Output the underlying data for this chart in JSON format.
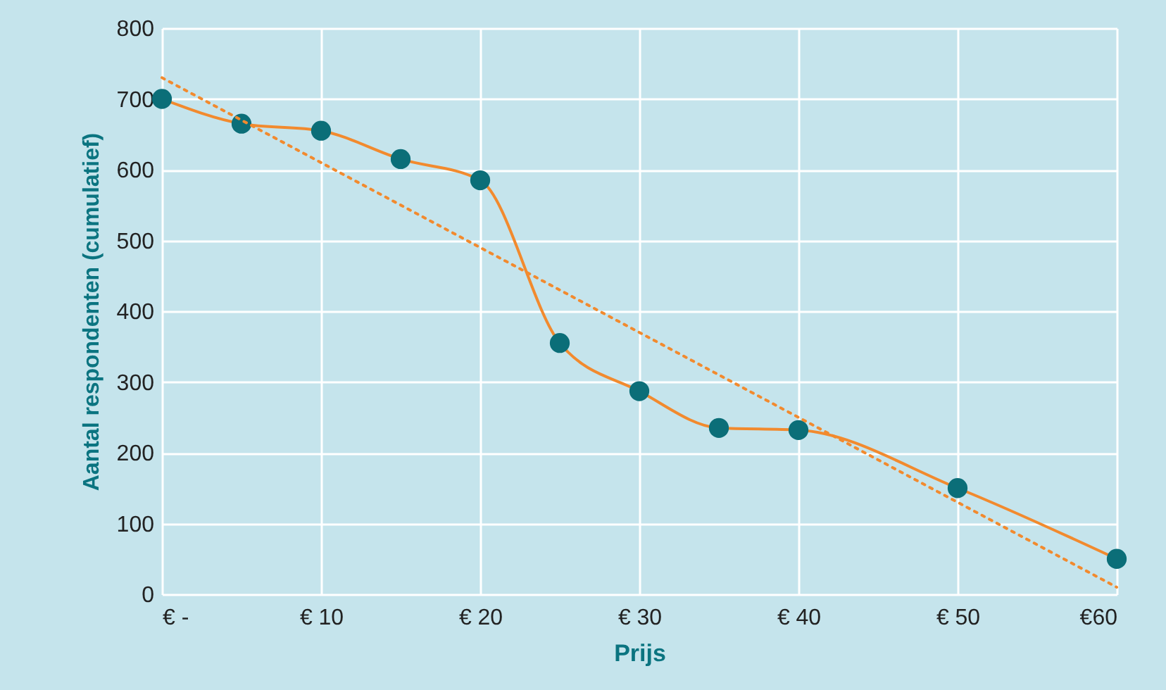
{
  "chart_data": {
    "type": "line",
    "xlabel": "Prijs",
    "ylabel": "Aantal respondenten (cumulatief)",
    "x": [
      0,
      5,
      10,
      15,
      20,
      25,
      30,
      35,
      40,
      50,
      60
    ],
    "series": [
      {
        "color": "#f28a2e",
        "marker": "circle",
        "line_style": "solid",
        "values": [
          700,
          665,
          655,
          615,
          585,
          355,
          287,
          235,
          232,
          150,
          50
        ]
      },
      {
        "type": "line",
        "color": "#f28a2e",
        "marker": "none",
        "line_style": "dotted",
        "x": [
          0,
          60
        ],
        "values": [
          730,
          10
        ]
      }
    ],
    "xlim": [
      0,
      60
    ],
    "ylim": [
      0,
      800
    ],
    "xticks": [
      {
        "value": 0,
        "label": "€ -"
      },
      {
        "value": 10,
        "label": "€ 10"
      },
      {
        "value": 20,
        "label": "€ 20"
      },
      {
        "value": 30,
        "label": "€ 30"
      },
      {
        "value": 40,
        "label": "€ 40"
      },
      {
        "value": 50,
        "label": "€ 50"
      },
      {
        "value": 60,
        "label": "€60"
      }
    ],
    "yticks": [
      0,
      100,
      200,
      300,
      400,
      500,
      600,
      700,
      800
    ],
    "grid": true
  }
}
